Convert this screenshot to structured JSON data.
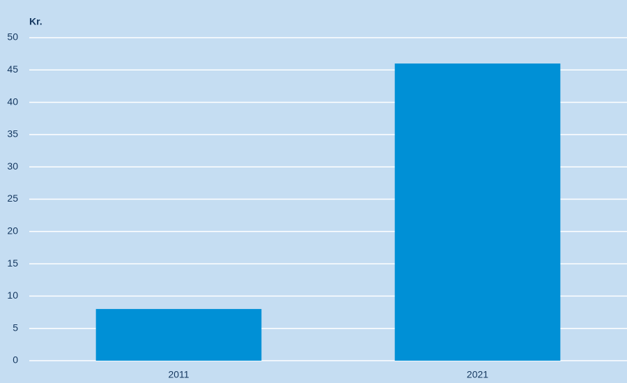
{
  "chart_data": {
    "type": "bar",
    "y_label": "Kr.",
    "categories": [
      "2011",
      "2021"
    ],
    "values": [
      8,
      46
    ],
    "color": "#0090d6",
    "ylim": [
      0,
      50
    ],
    "yticks": [
      0,
      5,
      10,
      15,
      20,
      25,
      30,
      35,
      40,
      45,
      50
    ],
    "grid": true
  }
}
